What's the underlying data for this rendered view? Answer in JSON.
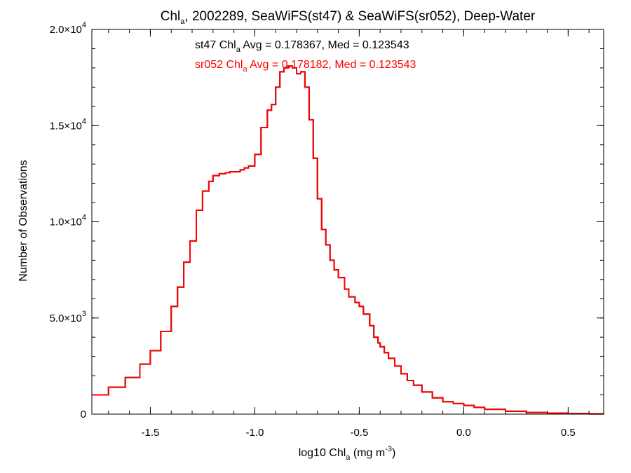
{
  "chart_data": {
    "type": "histogram-step",
    "title": {
      "base": "Chl",
      "sub": "a",
      "rest": ", 2002289, SeaWiFS(st47) & SeaWiFS(sr052), Deep-Water"
    },
    "xlabel": {
      "base": "log10 Chl",
      "sub": "a",
      "unit": " (mg m",
      "sup": "-3",
      "close": ")"
    },
    "ylabel": "Number of Observations",
    "xlim": [
      -1.78,
      0.67
    ],
    "ylim": [
      0,
      20000
    ],
    "x_ticks": [
      {
        "value": -1.5,
        "label": "-1.5"
      },
      {
        "value": -1.0,
        "label": "-1.0"
      },
      {
        "value": -0.5,
        "label": "-0.5"
      },
      {
        "value": 0.0,
        "label": "0.0"
      },
      {
        "value": 0.5,
        "label": "0.5"
      }
    ],
    "x_minor_step": 0.1,
    "y_ticks": [
      {
        "value": 0,
        "mant": "0",
        "exp": ""
      },
      {
        "value": 5000,
        "mant": "5.0×10",
        "exp": "3"
      },
      {
        "value": 10000,
        "mant": "1.0×10",
        "exp": "4"
      },
      {
        "value": 15000,
        "mant": "1.5×10",
        "exp": "4"
      },
      {
        "value": 20000,
        "mant": "2.0×10",
        "exp": "4"
      }
    ],
    "y_minor_step": 1000,
    "annotations": [
      {
        "prefix": "st47 Chl",
        "sub": "a",
        "rest": " Avg = 0.178367, Med = 0.123543",
        "color": "#000000"
      },
      {
        "prefix": "sr052 Chl",
        "sub": "a",
        "rest": " Avg = 0.178182, Med = 0.123543",
        "color": "#ff0000"
      }
    ],
    "series": [
      {
        "name": "st47",
        "color": "#000000",
        "x": [
          -1.78,
          -1.7,
          -1.62,
          -1.55,
          -1.5,
          -1.45,
          -1.4,
          -1.37,
          -1.34,
          -1.31,
          -1.28,
          -1.25,
          -1.22,
          -1.2,
          -1.17,
          -1.14,
          -1.12,
          -1.1,
          -1.07,
          -1.05,
          -1.03,
          -1.0,
          -0.97,
          -0.94,
          -0.92,
          -0.9,
          -0.88,
          -0.86,
          -0.84,
          -0.82,
          -0.8,
          -0.78,
          -0.76,
          -0.74,
          -0.72,
          -0.7,
          -0.68,
          -0.66,
          -0.64,
          -0.62,
          -0.6,
          -0.57,
          -0.55,
          -0.52,
          -0.5,
          -0.48,
          -0.45,
          -0.43,
          -0.41,
          -0.4,
          -0.38,
          -0.36,
          -0.33,
          -0.3,
          -0.27,
          -0.24,
          -0.2,
          -0.15,
          -0.1,
          -0.05,
          0.0,
          0.05,
          0.1,
          0.2,
          0.3,
          0.4,
          0.5,
          0.6,
          0.67
        ],
        "y": [
          1000,
          1400,
          1900,
          2600,
          3300,
          4300,
          5600,
          6600,
          7900,
          9000,
          10600,
          11600,
          12100,
          12400,
          12500,
          12550,
          12600,
          12600,
          12700,
          12800,
          12900,
          13500,
          14900,
          15800,
          16100,
          17000,
          17800,
          18000,
          18100,
          18000,
          17700,
          17800,
          17000,
          15300,
          13300,
          11200,
          9600,
          8800,
          8000,
          7500,
          7100,
          6500,
          6100,
          5800,
          5600,
          5200,
          4600,
          4000,
          3700,
          3500,
          3200,
          2900,
          2500,
          2100,
          1750,
          1500,
          1150,
          850,
          650,
          550,
          450,
          350,
          250,
          150,
          80,
          50,
          30,
          15,
          10
        ]
      },
      {
        "name": "sr052",
        "color": "#ff0000",
        "x": [
          -1.78,
          -1.7,
          -1.62,
          -1.55,
          -1.5,
          -1.45,
          -1.4,
          -1.37,
          -1.34,
          -1.31,
          -1.28,
          -1.25,
          -1.22,
          -1.2,
          -1.17,
          -1.14,
          -1.12,
          -1.1,
          -1.07,
          -1.05,
          -1.03,
          -1.0,
          -0.97,
          -0.94,
          -0.92,
          -0.9,
          -0.88,
          -0.86,
          -0.84,
          -0.82,
          -0.8,
          -0.78,
          -0.76,
          -0.74,
          -0.72,
          -0.7,
          -0.68,
          -0.66,
          -0.64,
          -0.62,
          -0.6,
          -0.57,
          -0.55,
          -0.52,
          -0.5,
          -0.48,
          -0.45,
          -0.43,
          -0.41,
          -0.4,
          -0.38,
          -0.36,
          -0.33,
          -0.3,
          -0.27,
          -0.24,
          -0.2,
          -0.15,
          -0.1,
          -0.05,
          0.0,
          0.05,
          0.1,
          0.2,
          0.3,
          0.4,
          0.5,
          0.6,
          0.67
        ],
        "y": [
          1000,
          1400,
          1900,
          2600,
          3300,
          4300,
          5600,
          6600,
          7900,
          9000,
          10600,
          11600,
          12100,
          12400,
          12500,
          12550,
          12600,
          12600,
          12700,
          12800,
          12900,
          13500,
          14900,
          15800,
          16100,
          17000,
          17800,
          18000,
          18100,
          18000,
          17700,
          17800,
          17000,
          15300,
          13300,
          11200,
          9600,
          8800,
          8000,
          7500,
          7100,
          6500,
          6100,
          5800,
          5600,
          5200,
          4600,
          4000,
          3700,
          3500,
          3200,
          2900,
          2500,
          2100,
          1750,
          1500,
          1150,
          850,
          650,
          550,
          450,
          350,
          250,
          150,
          80,
          50,
          30,
          15,
          10
        ]
      }
    ]
  }
}
